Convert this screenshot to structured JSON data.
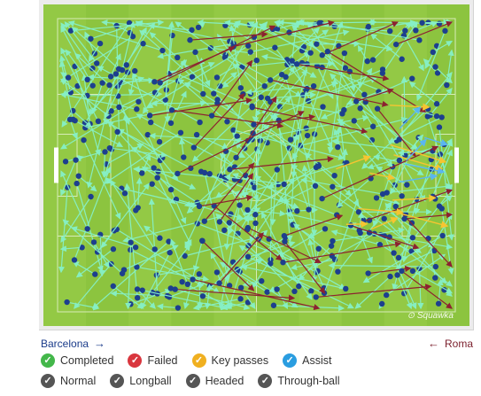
{
  "teams": {
    "home": "Barcelona",
    "away": "Roma"
  },
  "watermark": "Squawka",
  "legend": {
    "outcomes": [
      {
        "label": "Completed",
        "color": "#43b74a"
      },
      {
        "label": "Failed",
        "color": "#d9363e"
      },
      {
        "label": "Key passes",
        "color": "#f0b020"
      },
      {
        "label": "Assist",
        "color": "#2a9de0"
      }
    ],
    "types": [
      {
        "label": "Normal",
        "color": "#555555"
      },
      {
        "label": "Longball",
        "color": "#555555"
      },
      {
        "label": "Headed",
        "color": "#555555"
      },
      {
        "label": "Through-ball",
        "color": "#555555"
      }
    ]
  },
  "colors": {
    "pitch": "#8cc43f",
    "stripe_light": "#93c945",
    "completed_pass": "#86f0c7",
    "failed_pass": "#8c2130",
    "key_pass": "#f6c531",
    "assist": "#5ab6f0",
    "player_dot": "#1d3f8e"
  }
}
